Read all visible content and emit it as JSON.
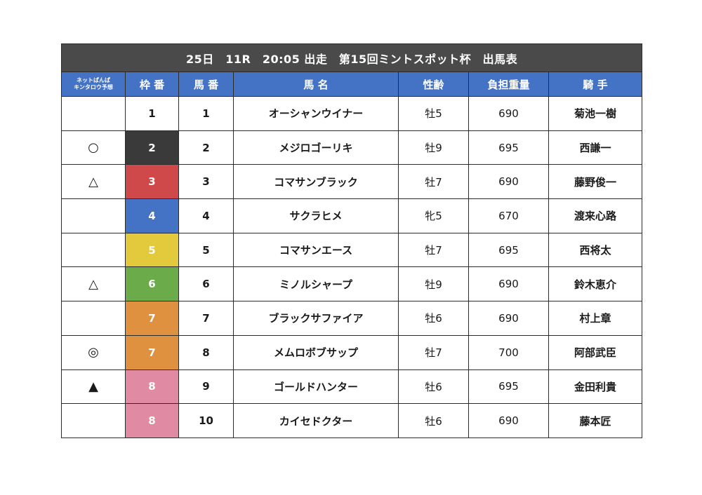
{
  "title": "25日　11R　20:05 出走　第15回ミントスポット杯　出馬表",
  "headers": {
    "prediction_line1": "ネットぱんぱ",
    "prediction_line2": "キンタロウ予想",
    "waku": "枠 番",
    "uma": "馬 番",
    "name": "馬 名",
    "sex_age": "性齢",
    "weight": "負担重量",
    "jockey": "騎 手"
  },
  "waku_colors": {
    "1": {
      "bg": "#ffffff",
      "fg": "#1a1a1a"
    },
    "2": {
      "bg": "#3a3a3a",
      "fg": "#ffffff"
    },
    "3": {
      "bg": "#d0494a",
      "fg": "#ffffff"
    },
    "4": {
      "bg": "#4472c4",
      "fg": "#ffffff"
    },
    "5": {
      "bg": "#e3c93c",
      "fg": "#ffffff"
    },
    "6": {
      "bg": "#6bab4a",
      "fg": "#ffffff"
    },
    "7": {
      "bg": "#e0913f",
      "fg": "#ffffff"
    },
    "8": {
      "bg": "#e08aa4",
      "fg": "#ffffff"
    }
  },
  "rows": [
    {
      "mark": "",
      "waku": "1",
      "uma": "1",
      "name": "オーシャンウイナー",
      "sex_age": "牡5",
      "weight": "690",
      "jockey": "菊池一樹"
    },
    {
      "mark": "○",
      "waku": "2",
      "uma": "2",
      "name": "メジロゴーリキ",
      "sex_age": "牡9",
      "weight": "695",
      "jockey": "西謙一"
    },
    {
      "mark": "△",
      "waku": "3",
      "uma": "3",
      "name": "コマサンブラック",
      "sex_age": "牡7",
      "weight": "690",
      "jockey": "藤野俊一"
    },
    {
      "mark": "",
      "waku": "4",
      "uma": "4",
      "name": "サクラヒメ",
      "sex_age": "牝5",
      "weight": "670",
      "jockey": "渡来心路"
    },
    {
      "mark": "",
      "waku": "5",
      "uma": "5",
      "name": "コマサンエース",
      "sex_age": "牡7",
      "weight": "695",
      "jockey": "西将太"
    },
    {
      "mark": "△",
      "waku": "6",
      "uma": "6",
      "name": "ミノルシャープ",
      "sex_age": "牡9",
      "weight": "690",
      "jockey": "鈴木恵介"
    },
    {
      "mark": "",
      "waku": "7",
      "uma": "7",
      "name": "ブラックサファイア",
      "sex_age": "牡6",
      "weight": "690",
      "jockey": "村上章"
    },
    {
      "mark": "◎",
      "waku": "7",
      "uma": "8",
      "name": "メムロボブサップ",
      "sex_age": "牡7",
      "weight": "700",
      "jockey": "阿部武臣"
    },
    {
      "mark": "▲",
      "waku": "8",
      "uma": "9",
      "name": "ゴールドハンター",
      "sex_age": "牡6",
      "weight": "695",
      "jockey": "金田利貴"
    },
    {
      "mark": "",
      "waku": "8",
      "uma": "10",
      "name": "カイセドクター",
      "sex_age": "牡6",
      "weight": "690",
      "jockey": "藤本匠"
    }
  ]
}
